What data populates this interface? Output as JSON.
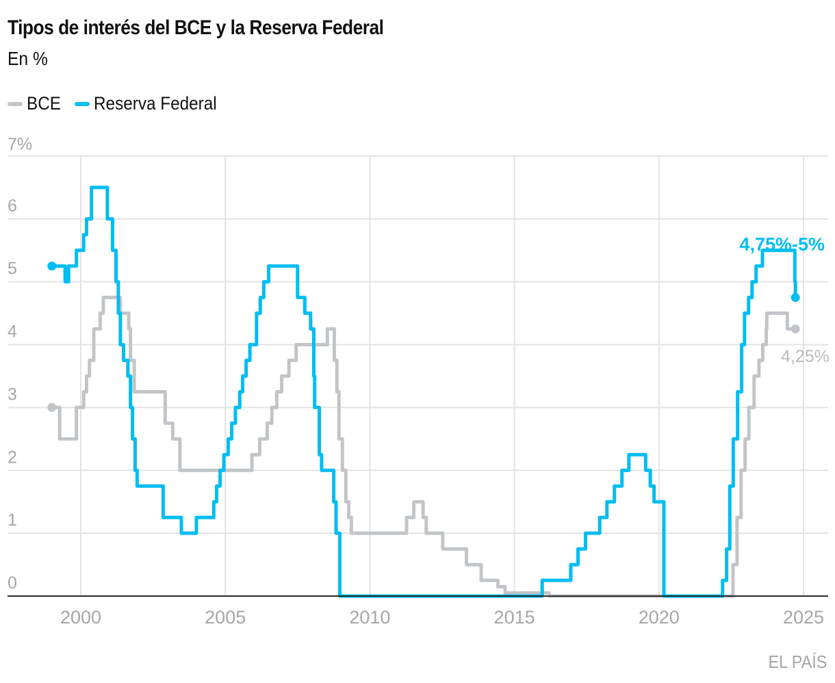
{
  "chart_data": {
    "type": "line",
    "step": true,
    "title": "Tipos de interés del BCE y la Reserva Federal",
    "subtitle": "En %",
    "xlabel": "",
    "ylabel": "",
    "xlim": [
      1998.9,
      2025.9
    ],
    "ylim": [
      0,
      7
    ],
    "x_ticks": [
      2000,
      2005,
      2010,
      2015,
      2020,
      2025
    ],
    "x_tick_labels": [
      "2000",
      "2005",
      "2010",
      "2015",
      "2020",
      "2025"
    ],
    "y_ticks": [
      0,
      1,
      2,
      3,
      4,
      5,
      6,
      7
    ],
    "y_tick_labels": [
      "0",
      "1",
      "2",
      "3",
      "4",
      "5",
      "6",
      "7%"
    ],
    "grid": true,
    "legend": "top-left",
    "source": "EL PAÍS",
    "series": [
      {
        "name": "BCE",
        "color": "#c2c5c8",
        "end_label": "4,25%",
        "points": [
          [
            1999.0,
            3.0
          ],
          [
            1999.27,
            2.5
          ],
          [
            1999.85,
            3.0
          ],
          [
            2000.1,
            3.25
          ],
          [
            2000.2,
            3.5
          ],
          [
            2000.3,
            3.75
          ],
          [
            2000.45,
            4.25
          ],
          [
            2000.67,
            4.5
          ],
          [
            2000.78,
            4.75
          ],
          [
            2001.37,
            4.5
          ],
          [
            2001.66,
            4.25
          ],
          [
            2001.72,
            3.75
          ],
          [
            2001.85,
            3.25
          ],
          [
            2002.92,
            2.75
          ],
          [
            2003.18,
            2.5
          ],
          [
            2003.43,
            2.0
          ],
          [
            2005.92,
            2.25
          ],
          [
            2006.19,
            2.5
          ],
          [
            2006.45,
            2.75
          ],
          [
            2006.61,
            3.0
          ],
          [
            2006.78,
            3.25
          ],
          [
            2006.95,
            3.5
          ],
          [
            2007.2,
            3.75
          ],
          [
            2007.45,
            4.0
          ],
          [
            2008.53,
            4.25
          ],
          [
            2008.77,
            3.75
          ],
          [
            2008.86,
            3.25
          ],
          [
            2008.93,
            2.5
          ],
          [
            2009.05,
            2.0
          ],
          [
            2009.17,
            1.5
          ],
          [
            2009.27,
            1.25
          ],
          [
            2009.36,
            1.0
          ],
          [
            2011.27,
            1.25
          ],
          [
            2011.52,
            1.5
          ],
          [
            2011.84,
            1.25
          ],
          [
            2011.95,
            1.0
          ],
          [
            2012.52,
            0.75
          ],
          [
            2013.34,
            0.5
          ],
          [
            2013.85,
            0.25
          ],
          [
            2014.43,
            0.15
          ],
          [
            2014.68,
            0.05
          ],
          [
            2016.2,
            0.0
          ],
          [
            2022.56,
            0.5
          ],
          [
            2022.7,
            1.25
          ],
          [
            2022.84,
            2.0
          ],
          [
            2022.98,
            2.5
          ],
          [
            2023.11,
            3.0
          ],
          [
            2023.29,
            3.5
          ],
          [
            2023.46,
            3.75
          ],
          [
            2023.59,
            4.0
          ],
          [
            2023.71,
            4.25
          ],
          [
            2023.73,
            4.5
          ],
          [
            2024.44,
            4.25
          ],
          [
            2024.72,
            4.25
          ]
        ]
      },
      {
        "name": "Reserva Federal",
        "color": "#00bdf2",
        "end_label": "4,75%-5%",
        "points": [
          [
            1999.0,
            5.25
          ],
          [
            1999.46,
            5.0
          ],
          [
            1999.58,
            5.25
          ],
          [
            1999.85,
            5.5
          ],
          [
            2000.1,
            5.75
          ],
          [
            2000.2,
            6.0
          ],
          [
            2000.37,
            6.5
          ],
          [
            2000.92,
            6.0
          ],
          [
            2001.1,
            5.5
          ],
          [
            2001.22,
            5.0
          ],
          [
            2001.3,
            4.5
          ],
          [
            2001.37,
            4.0
          ],
          [
            2001.48,
            3.75
          ],
          [
            2001.63,
            3.5
          ],
          [
            2001.72,
            3.0
          ],
          [
            2001.79,
            2.5
          ],
          [
            2001.88,
            2.0
          ],
          [
            2001.95,
            1.75
          ],
          [
            2002.85,
            1.25
          ],
          [
            2003.48,
            1.0
          ],
          [
            2004.0,
            1.25
          ],
          [
            2004.6,
            1.5
          ],
          [
            2004.7,
            1.75
          ],
          [
            2004.82,
            2.0
          ],
          [
            2004.95,
            2.25
          ],
          [
            2005.1,
            2.5
          ],
          [
            2005.22,
            2.75
          ],
          [
            2005.35,
            3.0
          ],
          [
            2005.5,
            3.25
          ],
          [
            2005.6,
            3.5
          ],
          [
            2005.72,
            3.75
          ],
          [
            2005.85,
            4.0
          ],
          [
            2006.08,
            4.5
          ],
          [
            2006.21,
            4.75
          ],
          [
            2006.33,
            5.0
          ],
          [
            2006.5,
            5.25
          ],
          [
            2007.5,
            4.75
          ],
          [
            2007.75,
            4.5
          ],
          [
            2007.95,
            4.25
          ],
          [
            2008.06,
            3.5
          ],
          [
            2008.09,
            3.0
          ],
          [
            2008.25,
            2.25
          ],
          [
            2008.33,
            2.0
          ],
          [
            2008.75,
            1.5
          ],
          [
            2008.83,
            1.0
          ],
          [
            2008.96,
            0.0
          ],
          [
            2015.96,
            0.25
          ],
          [
            2016.95,
            0.5
          ],
          [
            2017.2,
            0.75
          ],
          [
            2017.46,
            1.0
          ],
          [
            2017.95,
            1.25
          ],
          [
            2018.2,
            1.5
          ],
          [
            2018.46,
            1.75
          ],
          [
            2018.72,
            2.0
          ],
          [
            2018.96,
            2.25
          ],
          [
            2019.54,
            2.0
          ],
          [
            2019.7,
            1.75
          ],
          [
            2019.83,
            1.5
          ],
          [
            2020.17,
            0.0
          ],
          [
            2022.2,
            0.25
          ],
          [
            2022.34,
            0.75
          ],
          [
            2022.45,
            1.75
          ],
          [
            2022.57,
            2.5
          ],
          [
            2022.72,
            3.25
          ],
          [
            2022.86,
            4.0
          ],
          [
            2022.96,
            4.5
          ],
          [
            2023.1,
            4.75
          ],
          [
            2023.22,
            5.0
          ],
          [
            2023.36,
            5.25
          ],
          [
            2023.58,
            5.5
          ],
          [
            2024.7,
            5.0
          ],
          [
            2024.72,
            4.75
          ]
        ]
      }
    ]
  }
}
